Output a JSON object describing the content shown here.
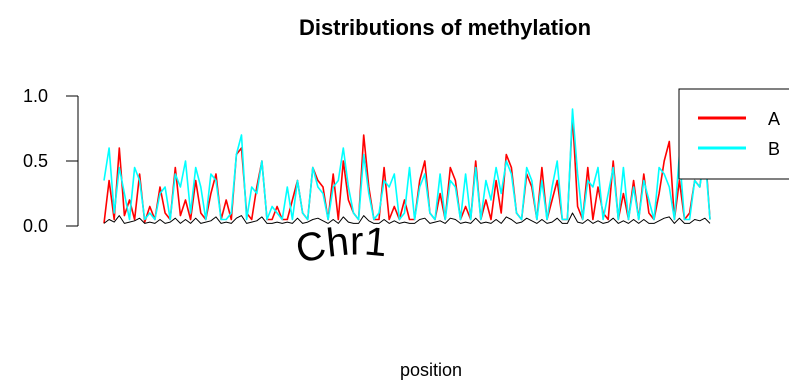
{
  "chart_data": {
    "type": "line",
    "title": "Distributions of methylation",
    "xlabel": "position",
    "ylabel": "",
    "ylim": [
      0,
      1
    ],
    "y_ticks": [
      "0.0",
      "0.5",
      "1.0"
    ],
    "region_label": "Chr1",
    "x": [
      1,
      6,
      11,
      16,
      21,
      26,
      31,
      36,
      41,
      46,
      51,
      56,
      61,
      66,
      71,
      76,
      81,
      86,
      91,
      96,
      101,
      106,
      111,
      116,
      121,
      126,
      131,
      136,
      141,
      146,
      151,
      156,
      161,
      166,
      171,
      176,
      181,
      186,
      191,
      196,
      201,
      206,
      211,
      216,
      221,
      226,
      231,
      236,
      241,
      246,
      251,
      256,
      261,
      266,
      271,
      276,
      281,
      286,
      291,
      296,
      301,
      306,
      311,
      316,
      321,
      326,
      331,
      336,
      341,
      346,
      351,
      356,
      361,
      366,
      371,
      376,
      381,
      386,
      391,
      396,
      401,
      406,
      411,
      416,
      421,
      426,
      431,
      436,
      441,
      446,
      451,
      456,
      461,
      466,
      471,
      476,
      481,
      486,
      491,
      496,
      501,
      506,
      511,
      516,
      521,
      526,
      531,
      536,
      541,
      546,
      551,
      556,
      561,
      566,
      571,
      576,
      581,
      586,
      591,
      596
    ],
    "series": [
      {
        "name": "A",
        "color": "#ff0000",
        "values": [
          0.02,
          0.35,
          0.05,
          0.6,
          0.08,
          0.2,
          0.05,
          0.4,
          0.03,
          0.15,
          0.05,
          0.3,
          0.1,
          0.05,
          0.45,
          0.08,
          0.2,
          0.05,
          0.35,
          0.1,
          0.05,
          0.25,
          0.4,
          0.05,
          0.2,
          0.05,
          0.55,
          0.6,
          0.1,
          0.05,
          0.3,
          0.5,
          0.05,
          0.05,
          0.15,
          0.05,
          0.05,
          0.2,
          0.35,
          0.1,
          0.05,
          0.45,
          0.35,
          0.3,
          0.05,
          0.4,
          0.05,
          0.5,
          0.2,
          0.1,
          0.05,
          0.7,
          0.3,
          0.05,
          0.05,
          0.45,
          0.05,
          0.15,
          0.05,
          0.2,
          0.05,
          0.05,
          0.35,
          0.5,
          0.1,
          0.05,
          0.25,
          0.05,
          0.45,
          0.35,
          0.05,
          0.15,
          0.05,
          0.5,
          0.05,
          0.2,
          0.05,
          0.35,
          0.1,
          0.55,
          0.45,
          0.1,
          0.05,
          0.4,
          0.3,
          0.05,
          0.45,
          0.05,
          0.2,
          0.35,
          0.05,
          0.05,
          0.85,
          0.15,
          0.05,
          0.45,
          0.05,
          0.3,
          0.1,
          0.05,
          0.5,
          0.05,
          0.25,
          0.05,
          0.35,
          0.05,
          0.4,
          0.1,
          0.05,
          0.25,
          0.5,
          0.65,
          0.05,
          0.35,
          0.05,
          0.1,
          0.35,
          0.3,
          0.6,
          0.05
        ],
        "line": "solid"
      },
      {
        "name": "B",
        "color": "#00ffff",
        "values": [
          0.35,
          0.6,
          0.1,
          0.45,
          0.25,
          0.05,
          0.45,
          0.35,
          0.05,
          0.1,
          0.05,
          0.25,
          0.3,
          0.05,
          0.4,
          0.3,
          0.5,
          0.1,
          0.45,
          0.3,
          0.05,
          0.4,
          0.35,
          0.05,
          0.05,
          0.1,
          0.55,
          0.7,
          0.05,
          0.3,
          0.25,
          0.5,
          0.05,
          0.15,
          0.1,
          0.05,
          0.3,
          0.05,
          0.35,
          0.1,
          0.05,
          0.45,
          0.3,
          0.25,
          0.05,
          0.3,
          0.35,
          0.6,
          0.3,
          0.1,
          0.05,
          0.55,
          0.25,
          0.05,
          0.1,
          0.35,
          0.3,
          0.4,
          0.05,
          0.1,
          0.45,
          0.05,
          0.3,
          0.4,
          0.1,
          0.05,
          0.4,
          0.05,
          0.35,
          0.3,
          0.05,
          0.4,
          0.05,
          0.45,
          0.05,
          0.35,
          0.2,
          0.45,
          0.25,
          0.5,
          0.4,
          0.1,
          0.05,
          0.45,
          0.35,
          0.05,
          0.35,
          0.05,
          0.3,
          0.5,
          0.05,
          0.05,
          0.9,
          0.4,
          0.05,
          0.35,
          0.3,
          0.45,
          0.05,
          0.25,
          0.45,
          0.05,
          0.45,
          0.05,
          0.3,
          0.05,
          0.35,
          0.2,
          0.05,
          0.45,
          0.4,
          0.3,
          0.05,
          0.55,
          0.05,
          0.05,
          0.35,
          0.3,
          0.55,
          0.05
        ],
        "line": "solid"
      },
      {
        "name": "",
        "color": "#000000",
        "values": [
          0.02,
          0.05,
          0.03,
          0.08,
          0.02,
          0.03,
          0.04,
          0.06,
          0.02,
          0.03,
          0.02,
          0.05,
          0.02,
          0.03,
          0.06,
          0.02,
          0.05,
          0.02,
          0.06,
          0.02,
          0.03,
          0.04,
          0.07,
          0.02,
          0.03,
          0.02,
          0.06,
          0.08,
          0.02,
          0.03,
          0.04,
          0.07,
          0.02,
          0.02,
          0.03,
          0.02,
          0.03,
          0.02,
          0.06,
          0.02,
          0.03,
          0.05,
          0.06,
          0.04,
          0.02,
          0.05,
          0.02,
          0.07,
          0.03,
          0.02,
          0.02,
          0.08,
          0.04,
          0.02,
          0.02,
          0.05,
          0.02,
          0.04,
          0.02,
          0.03,
          0.02,
          0.02,
          0.05,
          0.06,
          0.02,
          0.03,
          0.04,
          0.02,
          0.06,
          0.05,
          0.02,
          0.03,
          0.02,
          0.06,
          0.02,
          0.03,
          0.02,
          0.05,
          0.02,
          0.07,
          0.05,
          0.02,
          0.03,
          0.06,
          0.04,
          0.02,
          0.05,
          0.02,
          0.03,
          0.06,
          0.02,
          0.02,
          0.1,
          0.03,
          0.02,
          0.05,
          0.02,
          0.04,
          0.02,
          0.03,
          0.06,
          0.02,
          0.04,
          0.02,
          0.05,
          0.02,
          0.05,
          0.02,
          0.02,
          0.04,
          0.06,
          0.07,
          0.02,
          0.06,
          0.02,
          0.02,
          0.05,
          0.04,
          0.06,
          0.02
        ],
        "line": "solid"
      }
    ],
    "legend": {
      "position": "top-right",
      "entries": [
        {
          "label": "A",
          "color": "#ff0000"
        },
        {
          "label": "B",
          "color": "#00ffff"
        }
      ]
    },
    "grid": false
  }
}
